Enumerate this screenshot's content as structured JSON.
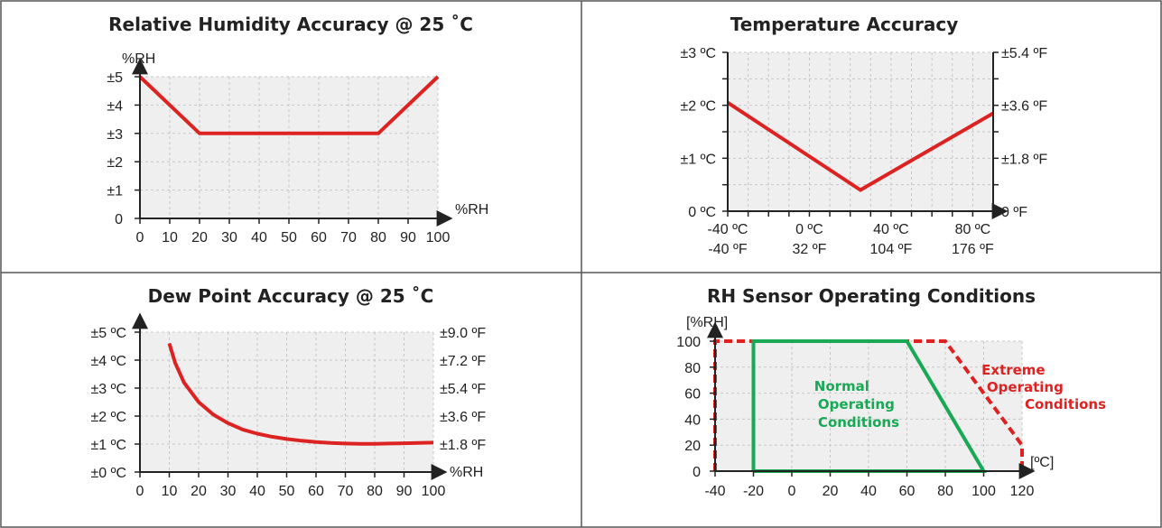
{
  "colors": {
    "red": "#dd2222",
    "green": "#19a956",
    "grid": "#c7c7c7",
    "plot_bg": "#efefef",
    "axis": "#222222"
  },
  "chart_data": [
    {
      "type": "line",
      "title": "Relative Humidity Accuracy @ 25 ˚C",
      "ylabel": "%RH",
      "xlabel": "%RH",
      "xlim": [
        0,
        100
      ],
      "ylim": [
        0,
        5
      ],
      "x_tick_labels": [
        "0",
        "10",
        "20",
        "30",
        "40",
        "50",
        "60",
        "70",
        "80",
        "90",
        "100"
      ],
      "y_tick_labels": [
        "0",
        "±1",
        "±2",
        "±3",
        "±4",
        "±5"
      ],
      "grid": true,
      "series": [
        {
          "x": [
            0,
            20,
            80,
            100
          ],
          "y": [
            5,
            3,
            3,
            5
          ]
        }
      ]
    },
    {
      "type": "line",
      "title": "Temperature Accuracy",
      "xlim": [
        -40,
        90
      ],
      "ylim": [
        0,
        3
      ],
      "x_tick_labels_c": [
        "-40 ºC",
        "0 ºC",
        "40 ºC",
        "80 ºC"
      ],
      "x_tick_labels_f": [
        "-40 ºF",
        "32 ºF",
        "104 ºF",
        "176 ºF"
      ],
      "y_tick_labels_left": [
        "0 ºC",
        "±1 ºC",
        "±2 ºC",
        "±3 ºC"
      ],
      "y_tick_labels_right": [
        "0 ºF",
        "±1.8 ºF",
        "±3.6 ºF",
        "±5.4 ºF"
      ],
      "grid": true,
      "series": [
        {
          "x": [
            -40,
            25,
            90
          ],
          "y": [
            2.05,
            0.4,
            1.85
          ]
        }
      ]
    },
    {
      "type": "line",
      "title": "Dew Point Accuracy @ 25 ˚C",
      "xlabel": "%RH",
      "xlim": [
        0,
        100
      ],
      "ylim": [
        0,
        5
      ],
      "x_tick_labels": [
        "0",
        "10",
        "20",
        "30",
        "40",
        "50",
        "60",
        "70",
        "80",
        "90",
        "100"
      ],
      "y_tick_labels_left": [
        "±0 ºC",
        "±1 ºC",
        "±2 ºC",
        "±3 ºC",
        "±4 ºC",
        "±5 ºC"
      ],
      "y_tick_labels_right": [
        "±1.8 ºF",
        "±3.6 ºF",
        "±5.4 ºF",
        "±7.2 ºF",
        "±9.0 ºF"
      ],
      "grid": true,
      "series": [
        {
          "x": [
            10,
            12,
            15,
            20,
            25,
            30,
            35,
            40,
            45,
            50,
            55,
            60,
            65,
            70,
            75,
            80,
            85,
            90,
            95,
            100
          ],
          "y": [
            4.6,
            3.9,
            3.2,
            2.5,
            2.05,
            1.75,
            1.52,
            1.37,
            1.26,
            1.18,
            1.12,
            1.07,
            1.04,
            1.02,
            1.01,
            1.01,
            1.02,
            1.03,
            1.04,
            1.05
          ]
        }
      ]
    },
    {
      "type": "line",
      "title": "RH Sensor Operating Conditions",
      "ylabel": "[%RH]",
      "xlabel": "[ºC]",
      "xlim": [
        -40,
        120
      ],
      "ylim": [
        0,
        100
      ],
      "x_tick_labels": [
        "-40",
        "-20",
        "0",
        "20",
        "40",
        "60",
        "80",
        "100",
        "120"
      ],
      "y_tick_labels": [
        "0",
        "20",
        "40",
        "60",
        "80",
        "100"
      ],
      "grid": true,
      "annotations": {
        "normal": [
          "Normal",
          "Operating",
          "Conditions"
        ],
        "extreme": [
          "Extreme",
          "Operating",
          "Conditions"
        ]
      },
      "series": [
        {
          "x": [
            -20,
            -20,
            60,
            100,
            -20
          ],
          "y": [
            0,
            100,
            100,
            0,
            0
          ]
        },
        {
          "x": [
            -40,
            -40,
            80,
            120,
            120
          ],
          "y": [
            0,
            100,
            100,
            20,
            0
          ]
        }
      ]
    }
  ]
}
